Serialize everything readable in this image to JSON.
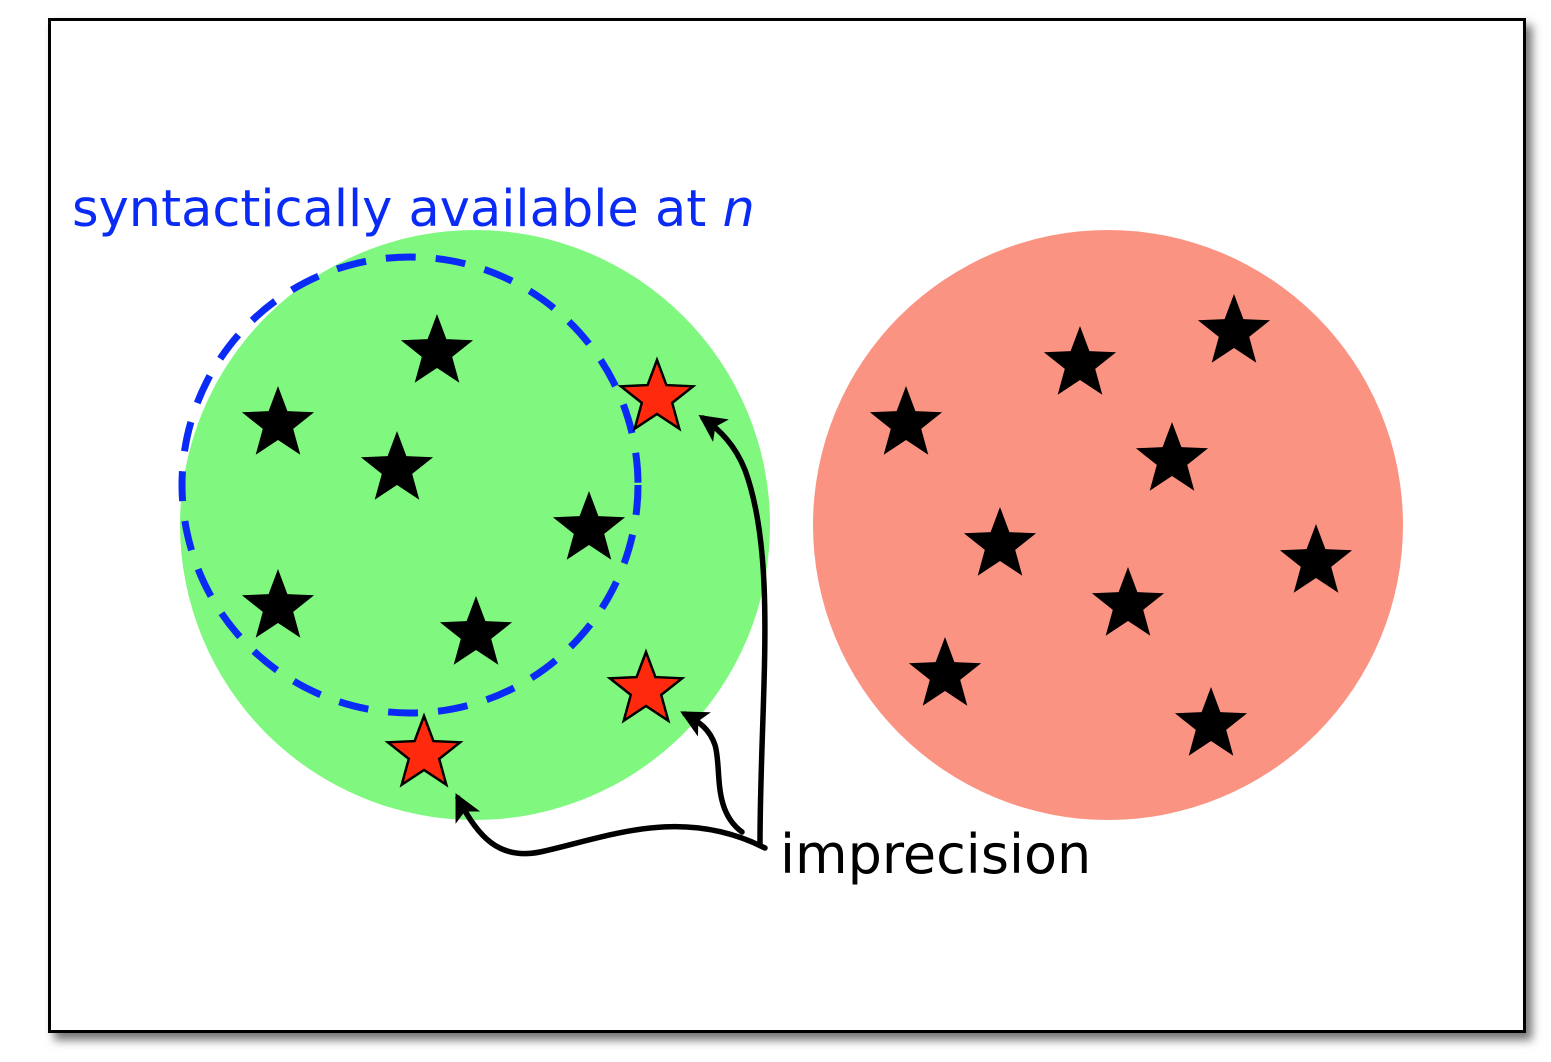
{
  "labels": {
    "syntactic_prefix": "syntactically available at ",
    "syntactic_var": "n",
    "imprecision": "imprecision"
  },
  "colors": {
    "green_region": "#80F880",
    "red_region": "#FA9382",
    "dashed_boundary": "#0A2BF5",
    "label_blue": "#0A2BF5",
    "star_black": "#000000",
    "star_red": "#FF2A0E",
    "arrow": "#000000"
  },
  "icons": {
    "star": "star-icon",
    "arrow": "arrow-icon"
  }
}
